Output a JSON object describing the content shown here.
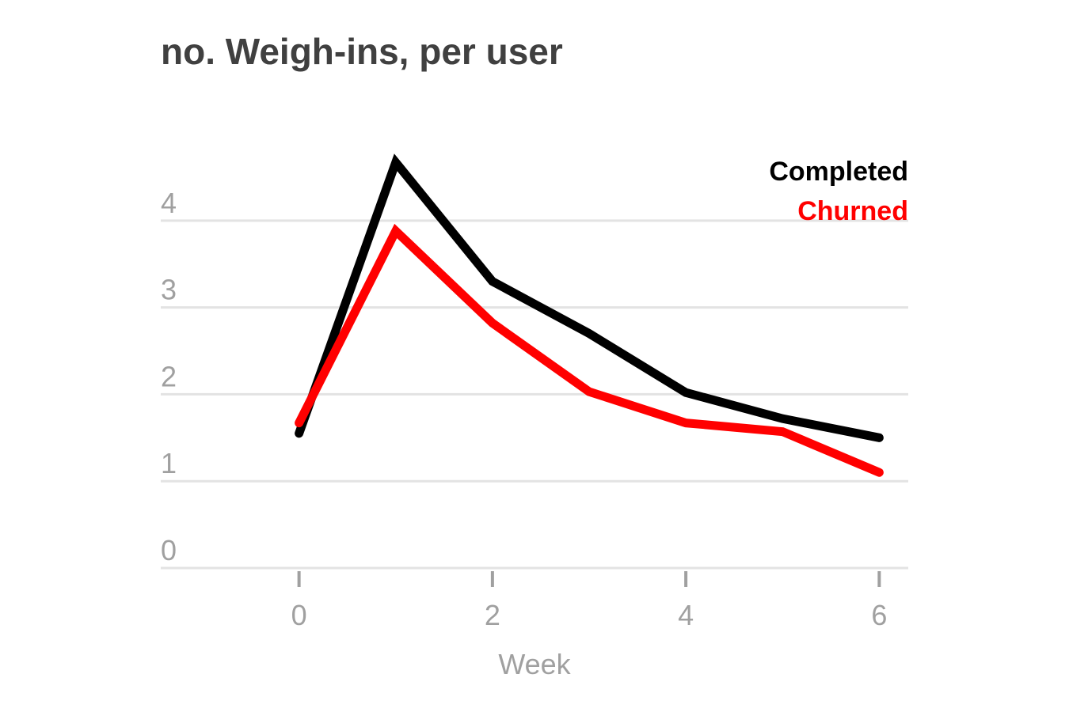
{
  "chart_data": {
    "type": "line",
    "title": "no. Weigh-ins, per user",
    "xlabel": "Week",
    "ylabel": "",
    "x": [
      0,
      1,
      2,
      3,
      4,
      5,
      6
    ],
    "xticks": [
      0,
      2,
      4,
      6
    ],
    "xtick_labels": [
      "0",
      "2",
      "4",
      "6"
    ],
    "yticks": [
      0,
      1,
      2,
      3,
      4
    ],
    "ytick_labels": [
      "0",
      "1",
      "2",
      "3",
      "4"
    ],
    "xlim": [
      -1.43,
      6.3
    ],
    "ylim": [
      0,
      4.9
    ],
    "grid": true,
    "legend_position": "top-right",
    "series": [
      {
        "name": "Completed",
        "color": "#000000",
        "values": [
          1.55,
          4.67,
          3.3,
          2.7,
          2.02,
          1.72,
          1.5
        ]
      },
      {
        "name": "Churned",
        "color": "#ff0000",
        "values": [
          1.67,
          3.88,
          2.82,
          2.03,
          1.67,
          1.57,
          1.1
        ]
      }
    ]
  }
}
